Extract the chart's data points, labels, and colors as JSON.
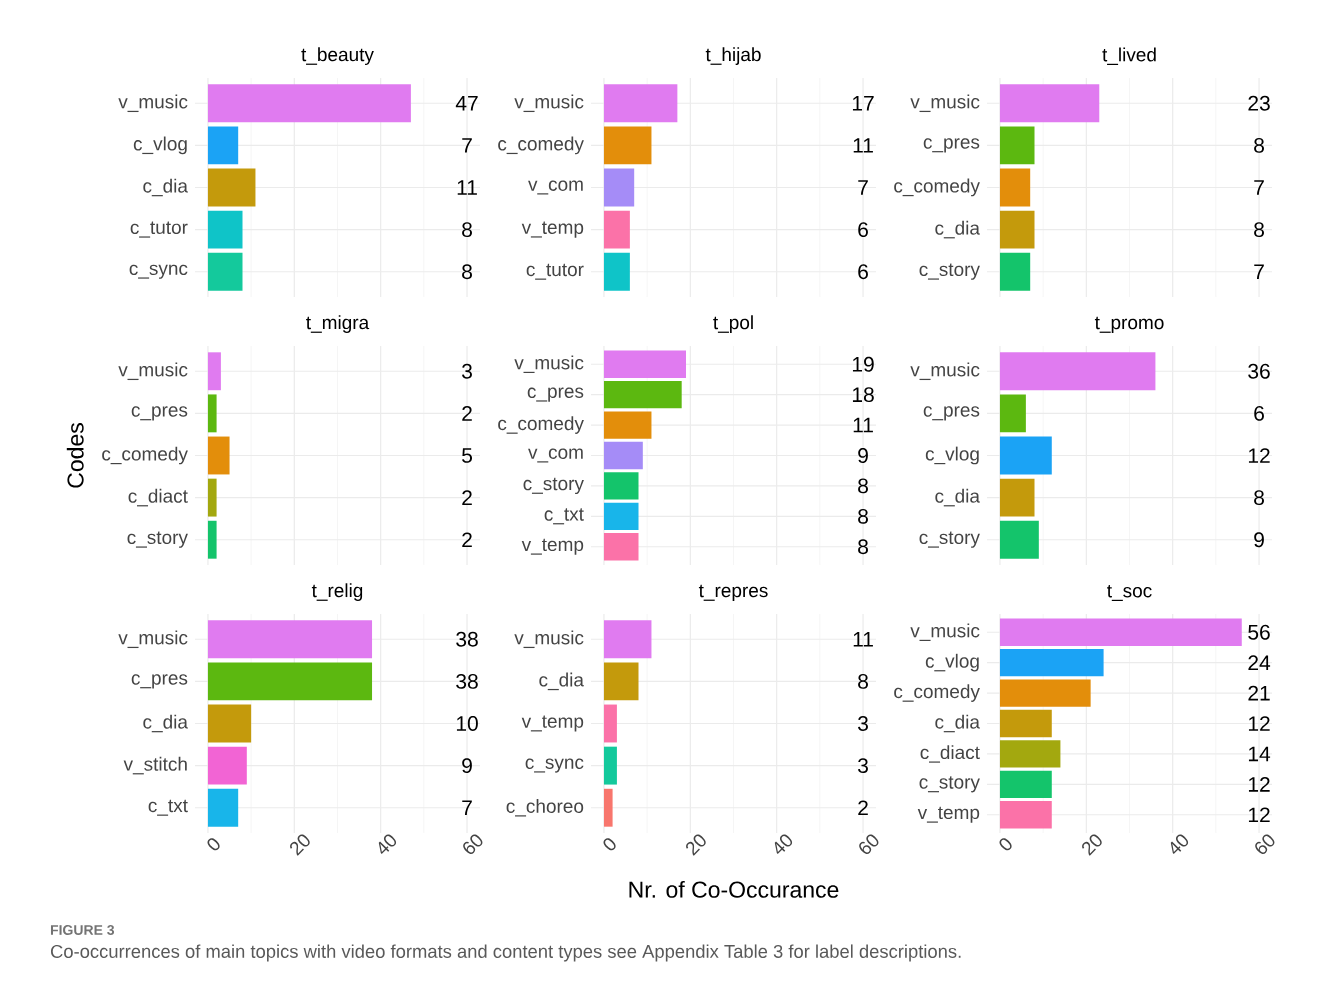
{
  "chart_data": [
    {
      "type": "bar",
      "orientation": "horizontal",
      "title": "t_beauty",
      "categories": [
        "v_music",
        "c_vlog",
        "c_dia",
        "c_tutor",
        "c_sync"
      ],
      "values": [
        47,
        7,
        11,
        8,
        8
      ],
      "colors": [
        "#e07bf0",
        "#1ba3f5",
        "#c49a0c",
        "#0fc4c8",
        "#14c99c"
      ],
      "xlim": [
        -3,
        63
      ],
      "xticks": [
        0,
        20,
        40,
        60
      ],
      "grid": true,
      "data_labels": true,
      "tick_labels": "y"
    },
    {
      "type": "bar",
      "orientation": "horizontal",
      "title": "t_hijab",
      "categories": [
        "v_music",
        "c_comedy",
        "v_com",
        "v_temp",
        "c_tutor"
      ],
      "values": [
        17,
        11,
        7,
        6,
        6
      ],
      "colors": [
        "#e07bf0",
        "#e38e0b",
        "#a58cf7",
        "#fb72a8",
        "#0fc4c8"
      ],
      "xlim": [
        -3,
        63
      ],
      "xticks": [
        0,
        20,
        40,
        60
      ],
      "grid": true,
      "data_labels": true,
      "tick_labels": "y"
    },
    {
      "type": "bar",
      "orientation": "horizontal",
      "title": "t_lived",
      "categories": [
        "v_music",
        "c_pres",
        "c_comedy",
        "c_dia",
        "c_story"
      ],
      "values": [
        23,
        8,
        7,
        8,
        7
      ],
      "colors": [
        "#e07bf0",
        "#5cb810",
        "#e38e0b",
        "#c49a0c",
        "#14c46b"
      ],
      "xlim": [
        -3,
        63
      ],
      "xticks": [
        0,
        20,
        40,
        60
      ],
      "grid": true,
      "data_labels": true,
      "tick_labels": "y"
    },
    {
      "type": "bar",
      "orientation": "horizontal",
      "title": "t_migra",
      "ylabel": "Codes",
      "categories": [
        "v_music",
        "c_pres",
        "c_comedy",
        "c_diact",
        "c_story"
      ],
      "values": [
        3,
        2,
        5,
        2,
        2
      ],
      "colors": [
        "#e07bf0",
        "#5cb810",
        "#e38e0b",
        "#a3a80f",
        "#14c46b"
      ],
      "xlim": [
        -3,
        63
      ],
      "xticks": [
        0,
        20,
        40,
        60
      ],
      "grid": true,
      "data_labels": true,
      "tick_labels": "y"
    },
    {
      "type": "bar",
      "orientation": "horizontal",
      "title": "t_pol",
      "categories": [
        "v_music",
        "c_pres",
        "c_comedy",
        "v_com",
        "c_story",
        "c_txt",
        "v_temp"
      ],
      "values": [
        19,
        18,
        11,
        9,
        8,
        8,
        8
      ],
      "colors": [
        "#e07bf0",
        "#5cb810",
        "#e38e0b",
        "#a58cf7",
        "#14c46b",
        "#18b5ea",
        "#fb72a8"
      ],
      "xlim": [
        -3,
        63
      ],
      "xticks": [
        0,
        20,
        40,
        60
      ],
      "grid": true,
      "data_labels": true,
      "tick_labels": "y"
    },
    {
      "type": "bar",
      "orientation": "horizontal",
      "title": "t_promo",
      "categories": [
        "v_music",
        "c_pres",
        "c_vlog",
        "c_dia",
        "c_story"
      ],
      "values": [
        36,
        6,
        12,
        8,
        9
      ],
      "colors": [
        "#e07bf0",
        "#5cb810",
        "#1ba3f5",
        "#c49a0c",
        "#14c46b"
      ],
      "xlim": [
        -3,
        63
      ],
      "xticks": [
        0,
        20,
        40,
        60
      ],
      "grid": true,
      "data_labels": true,
      "tick_labels": "y"
    },
    {
      "type": "bar",
      "orientation": "horizontal",
      "title": "t_relig",
      "categories": [
        "v_music",
        "c_pres",
        "c_dia",
        "v_stitch",
        "c_txt"
      ],
      "values": [
        38,
        38,
        10,
        9,
        7
      ],
      "colors": [
        "#e07bf0",
        "#5cb810",
        "#c49a0c",
        "#f264d4",
        "#18b5ea"
      ],
      "xlim": [
        -3,
        63
      ],
      "xticks": [
        0,
        20,
        40,
        60
      ],
      "grid": true,
      "data_labels": true
    },
    {
      "type": "bar",
      "orientation": "horizontal",
      "title": "t_repres",
      "xlabel": "Nr. of Co-Occurance",
      "categories": [
        "v_music",
        "c_dia",
        "v_temp",
        "c_sync",
        "c_choreo"
      ],
      "values": [
        11,
        8,
        3,
        3,
        2
      ],
      "colors": [
        "#e07bf0",
        "#c49a0c",
        "#fb72a8",
        "#14c99c",
        "#f8766d"
      ],
      "xlim": [
        -3,
        63
      ],
      "xticks": [
        0,
        20,
        40,
        60
      ],
      "grid": true,
      "data_labels": true
    },
    {
      "type": "bar",
      "orientation": "horizontal",
      "title": "t_soc",
      "categories": [
        "v_music",
        "c_vlog",
        "c_comedy",
        "c_dia",
        "c_diact",
        "c_story",
        "v_temp"
      ],
      "values": [
        56,
        24,
        21,
        12,
        14,
        12,
        12
      ],
      "colors": [
        "#e07bf0",
        "#1ba3f5",
        "#e38e0b",
        "#c49a0c",
        "#a3a80f",
        "#14c46b",
        "#fb72a8"
      ],
      "xlim": [
        -3,
        63
      ],
      "xticks": [
        0,
        20,
        40,
        60
      ],
      "grid": true,
      "data_labels": true,
      "annotations": [
        "FIGURE 3",
        "Co-occurrences of main topics with video formats and content types see Appendix Table 3 for label descriptions."
      ]
    }
  ]
}
